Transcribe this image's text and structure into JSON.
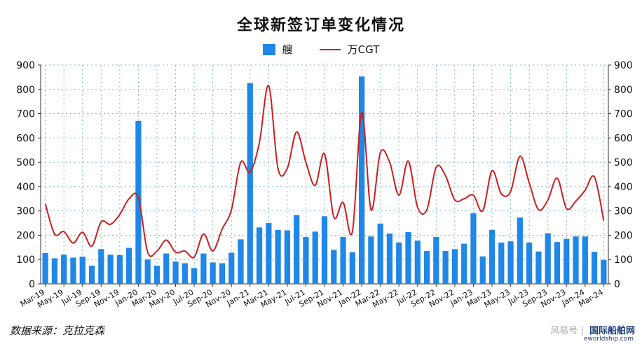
{
  "chart_data": {
    "type": "bar",
    "title": "全球新签订单变化情况",
    "legend": {
      "bar_label": "艘",
      "line_label": "万CGT",
      "placement": "top-center"
    },
    "ylim": [
      0,
      900
    ],
    "yticks": [
      0,
      100,
      200,
      300,
      400,
      500,
      600,
      700,
      800,
      900
    ],
    "y2lim": [
      0,
      900
    ],
    "grid": true,
    "categories": [
      "Mar-19",
      "Apr-19",
      "May-19",
      "Jun-19",
      "Jul-19",
      "Aug-19",
      "Sep-19",
      "Oct-19",
      "Nov-19",
      "Dec-19",
      "Jan-20",
      "Feb-20",
      "Mar-20",
      "Apr-20",
      "May-20",
      "Jun-20",
      "Jul-20",
      "Aug-20",
      "Sep-20",
      "Oct-20",
      "Nov-20",
      "Dec-20",
      "Jan-21",
      "Feb-21",
      "Mar-21",
      "Apr-21",
      "May-21",
      "Jun-21",
      "Jul-21",
      "Aug-21",
      "Sep-21",
      "Oct-21",
      "Nov-21",
      "Dec-21",
      "Jan-22",
      "Feb-22",
      "Mar-22",
      "Apr-22",
      "May-22",
      "Jun-22",
      "Jul-22",
      "Aug-22",
      "Sep-22",
      "Oct-22",
      "Nov-22",
      "Dec-22",
      "Jan-23",
      "Feb-23",
      "Mar-23",
      "Apr-23",
      "May-23",
      "Jun-23",
      "Jul-23",
      "Aug-23",
      "Sep-23",
      "Oct-23",
      "Nov-23",
      "Dec-23",
      "Jan-24",
      "Feb-24",
      "Mar-24"
    ],
    "x_tick_labels": [
      "Mar-19",
      "May-19",
      "Jul-19",
      "Sep-19",
      "Nov-19",
      "Jan-20",
      "Mar-20",
      "May-20",
      "Jul-20",
      "Sep-20",
      "Nov-20",
      "Jan-21",
      "Mar-21",
      "May-21",
      "Jul-21",
      "Sep-21",
      "Nov-21",
      "Jan-22",
      "Mar-22",
      "May-22",
      "Jul-22",
      "Sep-22",
      "Nov-22",
      "Jan-23",
      "Mar-23",
      "May-23",
      "Jul-23",
      "Sep-23",
      "Nov-23",
      "Jan-24",
      "Mar-24"
    ],
    "series": [
      {
        "name": "艘",
        "type": "bar",
        "color": "#1f87e8",
        "values": [
          127,
          105,
          120,
          108,
          112,
          75,
          143,
          120,
          118,
          148,
          670,
          100,
          75,
          125,
          92,
          85,
          65,
          125,
          88,
          85,
          128,
          183,
          825,
          232,
          250,
          222,
          220,
          283,
          193,
          215,
          278,
          140,
          193,
          130,
          853,
          195,
          248,
          207,
          170,
          213,
          178,
          135,
          193,
          135,
          143,
          165,
          290,
          113,
          222,
          170,
          175,
          273,
          170,
          133,
          208,
          172,
          185,
          195,
          195,
          132,
          98
        ]
      },
      {
        "name": "万CGT",
        "type": "line",
        "color": "#cc1f1f",
        "values": [
          330,
          205,
          215,
          168,
          212,
          155,
          255,
          245,
          285,
          350,
          355,
          130,
          135,
          180,
          130,
          135,
          110,
          205,
          135,
          225,
          305,
          500,
          460,
          580,
          815,
          475,
          475,
          625,
          500,
          405,
          535,
          275,
          335,
          215,
          705,
          305,
          540,
          500,
          365,
          505,
          315,
          305,
          480,
          445,
          345,
          350,
          365,
          300,
          465,
          370,
          380,
          525,
          415,
          305,
          345,
          435,
          310,
          340,
          385,
          440,
          260
        ]
      }
    ]
  },
  "footer": {
    "source": "数据来源：克拉克森",
    "watermark": "风易号 | ",
    "watermark_brand": "国际船舶网",
    "watermark_sub": "eworldship.com"
  }
}
